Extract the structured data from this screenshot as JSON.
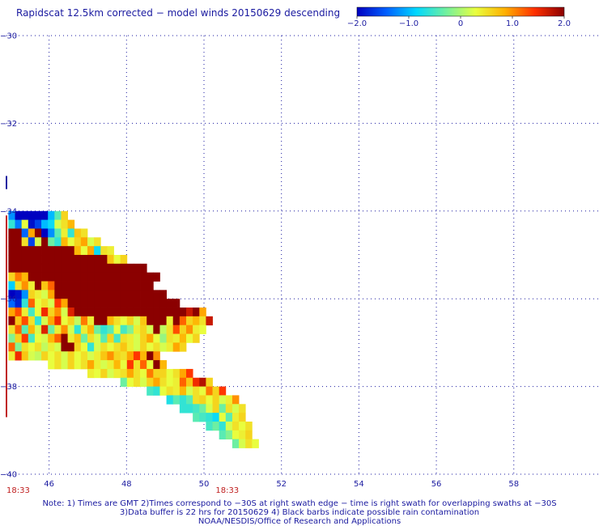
{
  "title": "Rapidscat 12.5km corrected − model winds 20150629 descending",
  "chart_data": {
    "type": "heatmap",
    "title": "Rapidscat 12.5km corrected − model winds 20150629 descending",
    "xlabel": "",
    "ylabel": "",
    "xlim": [
      44.9,
      60.2
    ],
    "ylim": [
      -40,
      -30
    ],
    "x_ticks": [
      46,
      48,
      50,
      52,
      54,
      56,
      58
    ],
    "y_ticks": [
      -30,
      -32,
      -34,
      -36,
      -38,
      -40
    ],
    "y_tick_labels": [
      "−30",
      "−32",
      "−34",
      "−36",
      "−38",
      "−40"
    ],
    "grid": true,
    "colorbar": {
      "min": -2.0,
      "max": 2.0,
      "ticks": [
        -2.0,
        -1.0,
        0,
        1.0,
        2.0
      ],
      "tick_labels": [
        "−2.0",
        "−1.0",
        "0",
        "1.0",
        "2.0"
      ],
      "colors": [
        "#0000c0",
        "#0060ff",
        "#00d8ff",
        "#70f0a0",
        "#e8ff40",
        "#ffb000",
        "#ff3000",
        "#8b0000"
      ]
    },
    "time_labels": [
      {
        "lon": 44.9,
        "lat": -40.35,
        "text": "18:33"
      },
      {
        "lon": 50.3,
        "lat": -40.35,
        "text": "18:33"
      }
    ],
    "cell_size_deg": [
      0.17,
      0.2
    ],
    "swath_rows": [
      {
        "lat": -34.1,
        "lon0": 44.95,
        "vals": [
          -1.2,
          -2.2,
          -2.2,
          -2.2,
          -2.2,
          -2.1,
          -1.0,
          -0.4,
          0.6
        ]
      },
      {
        "lat": -34.3,
        "lon0": 44.95,
        "vals": [
          -0.6,
          -1.3,
          0.3,
          -1.9,
          -1.6,
          -1.0,
          -0.8,
          0.2,
          0.5,
          0.8
        ]
      },
      {
        "lat": -34.5,
        "lon0": 44.95,
        "vals": [
          2.5,
          2.5,
          -1.4,
          0.9,
          2.5,
          -2.2,
          -1.2,
          -0.4,
          0.4,
          -0.6,
          0.7,
          0.5
        ]
      },
      {
        "lat": -34.7,
        "lon0": 44.95,
        "vals": [
          2.5,
          2.5,
          0.5,
          -1.6,
          0.2,
          2.5,
          -0.3,
          -0.6,
          0.8,
          0.3,
          0.6,
          0.9,
          0.2,
          0.5
        ]
      },
      {
        "lat": -34.9,
        "lon0": 44.95,
        "vals": [
          2.5,
          2.5,
          2.5,
          2.5,
          2.5,
          2.5,
          2.5,
          2.5,
          2.5,
          2.5,
          0.8,
          0.3,
          0.9,
          -0.8,
          0.5,
          0.4
        ]
      },
      {
        "lat": -35.1,
        "lon0": 44.95,
        "vals": [
          2.5,
          2.5,
          2.5,
          2.5,
          2.5,
          2.5,
          2.5,
          2.5,
          2.5,
          2.5,
          2.5,
          2.5,
          2.5,
          2.5,
          2.5,
          0.7,
          0.3,
          0.6
        ]
      },
      {
        "lat": -35.3,
        "lon0": 44.95,
        "vals": [
          2.5,
          2.5,
          2.5,
          2.5,
          2.5,
          2.5,
          2.5,
          2.5,
          2.5,
          2.5,
          2.5,
          2.5,
          2.5,
          2.5,
          2.5,
          2.5,
          2.5,
          2.5,
          2.5,
          2.5,
          2.5
        ]
      },
      {
        "lat": -35.5,
        "lon0": 44.95,
        "vals": [
          0.6,
          1.1,
          0.8,
          2.5,
          2.5,
          2.5,
          2.5,
          2.5,
          2.5,
          2.5,
          2.5,
          2.5,
          2.5,
          2.5,
          2.5,
          2.5,
          2.5,
          2.5,
          2.5,
          2.5,
          2.5,
          2.5,
          2.5
        ]
      },
      {
        "lat": -35.7,
        "lon0": 44.95,
        "vals": [
          -0.9,
          0.5,
          1.0,
          0.4,
          2.5,
          0.7,
          1.2,
          2.5,
          2.5,
          2.5,
          2.5,
          2.5,
          2.5,
          2.5,
          2.5,
          2.5,
          2.5,
          2.5,
          2.5,
          2.5,
          2.5,
          2.5
        ]
      },
      {
        "lat": -35.9,
        "lon0": 44.95,
        "vals": [
          -2.2,
          -1.9,
          -1.2,
          0.6,
          0.4,
          0.2,
          0.9,
          2.5,
          2.5,
          2.5,
          2.5,
          2.5,
          2.5,
          2.5,
          2.5,
          2.5,
          2.5,
          2.5,
          2.5,
          2.5,
          2.5,
          2.5,
          2.5,
          2.5
        ]
      },
      {
        "lat": -36.1,
        "lon0": 44.95,
        "vals": [
          -1.4,
          -1.8,
          -0.6,
          1.2,
          0.3,
          0.5,
          0.2,
          1.4,
          0.9,
          2.5,
          2.5,
          2.5,
          2.5,
          2.5,
          2.5,
          2.5,
          2.5,
          2.5,
          2.5,
          2.5,
          2.5,
          2.5,
          2.5,
          2.5,
          2.5,
          2.5
        ]
      },
      {
        "lat": -36.3,
        "lon0": 44.95,
        "vals": [
          0.9,
          1.3,
          0.4,
          -0.5,
          0.3,
          1.5,
          0.6,
          1.0,
          0.2,
          1.6,
          2.5,
          2.5,
          2.5,
          2.5,
          2.5,
          2.5,
          2.5,
          2.5,
          2.5,
          2.5,
          2.5,
          2.5,
          2.5,
          2.5,
          2.5,
          2.5,
          2.5,
          1.7,
          2.5,
          0.9
        ]
      },
      {
        "lat": -36.5,
        "lon0": 44.95,
        "vals": [
          2.5,
          0.7,
          1.3,
          0.5,
          -0.6,
          0.2,
          0.9,
          1.5,
          0.3,
          0.6,
          0.1,
          1.1,
          0.4,
          2.5,
          2.5,
          0.8,
          0.5,
          0.3,
          0.6,
          0.2,
          0.7,
          2.5,
          2.5,
          2.5,
          0.4,
          2.5,
          1.2,
          0.6,
          0.8,
          0.5,
          1.7
        ]
      },
      {
        "lat": -36.7,
        "lon0": 44.95,
        "vals": [
          0.5,
          1.2,
          -0.4,
          0.8,
          0.2,
          1.6,
          -0.3,
          0.4,
          1.0,
          0.2,
          -0.6,
          0.4,
          0.8,
          -0.3,
          -0.6,
          -0.4,
          0.3,
          -0.5,
          -0.2,
          0.4,
          0.6,
          0.2,
          2.5,
          0.1,
          0.5,
          1.3,
          0.6,
          1.0,
          0.4,
          0.3
        ]
      },
      {
        "lat": -36.9,
        "lon0": 44.95,
        "vals": [
          -0.2,
          0.6,
          1.4,
          -0.5,
          0.3,
          0.2,
          0.8,
          1.2,
          2.5,
          0.4,
          0.7,
          -0.3,
          0.5,
          0.2,
          -0.4,
          0.6,
          -0.5,
          0.5,
          0.4,
          0.2,
          0.6,
          0.9,
          0.3,
          -0.1,
          0.5,
          0.4,
          0.8,
          0.3,
          0.6
        ]
      },
      {
        "lat": -37.1,
        "lon0": 44.95,
        "vals": [
          1.2,
          -0.2,
          0.5,
          0.3,
          0.5,
          0.1,
          0.4,
          0.2,
          2.5,
          2.5,
          0.6,
          0.3,
          -0.6,
          0.2,
          0.5,
          0.3,
          0.5,
          0.7,
          0.4,
          0.2,
          0.6,
          0.3,
          0.5,
          0.2,
          0.4,
          0.9,
          0.6
        ]
      },
      {
        "lat": -37.3,
        "lon0": 44.95,
        "vals": [
          0.4,
          1.5,
          0.7,
          0.2,
          0.1,
          0.6,
          0.3,
          0.5,
          0.2,
          0.6,
          0.3,
          0.5,
          0.2,
          0.4,
          0.7,
          1.0,
          0.6,
          0.5,
          0.9,
          1.4,
          0.8,
          2.5,
          1.0
        ]
      },
      {
        "lat": -37.5,
        "lon0": 45.97,
        "vals": [
          0.3,
          0.5,
          0.2,
          0.6,
          0.3,
          0.5,
          0.9,
          0.4,
          0.2,
          0.4,
          0.8,
          0.3,
          1.4,
          0.5,
          1.2,
          0.3,
          2.5,
          0.8
        ]
      },
      {
        "lat": -37.7,
        "lon0": 46.99,
        "vals": [
          0.4,
          0.3,
          0.6,
          0.2,
          0.4,
          0.5,
          0.9,
          0.5,
          0.3,
          1.1,
          0.6,
          0.6,
          0.3,
          0.5,
          0.9,
          1.4
        ]
      },
      {
        "lat": -37.9,
        "lon0": 47.84,
        "vals": [
          -0.3,
          0.3,
          0.5,
          0.2,
          0.6,
          0.9,
          0.5,
          0.3,
          0.4,
          1.2,
          0.7,
          1.5,
          1.8,
          0.6
        ]
      },
      {
        "lat": -38.1,
        "lon0": 48.52,
        "vals": [
          -0.5,
          -0.6,
          0.3,
          0.5,
          0.4,
          0.8,
          0.2,
          0.5,
          0.3,
          1.1,
          0.6,
          1.4
        ]
      },
      {
        "lat": -38.3,
        "lon0": 49.03,
        "vals": [
          -0.7,
          -0.4,
          -0.6,
          -0.4,
          0.5,
          0.6,
          0.3,
          0.6,
          0.2,
          0.4,
          1.0
        ]
      },
      {
        "lat": -38.5,
        "lon0": 49.37,
        "vals": [
          -0.6,
          -0.6,
          -0.5,
          -0.3,
          0.2,
          0.6,
          -0.3,
          0.5,
          0.2,
          0.5
        ]
      },
      {
        "lat": -38.7,
        "lon0": 49.71,
        "vals": [
          -0.4,
          -0.5,
          -0.6,
          -0.8,
          0.3,
          -0.4,
          0.4,
          0.6
        ]
      },
      {
        "lat": -38.9,
        "lon0": 50.05,
        "vals": [
          -0.5,
          -0.3,
          -0.6,
          0.2,
          0.5,
          0.3,
          0.5
        ]
      },
      {
        "lat": -39.1,
        "lon0": 50.39,
        "vals": [
          -0.4,
          -0.2,
          0.3,
          0.4,
          0.6
        ]
      },
      {
        "lat": -39.3,
        "lon0": 50.73,
        "vals": [
          -0.3,
          0.2,
          0.5,
          0.3
        ]
      }
    ]
  },
  "notes": {
    "line1": "Note: 1) Times are GMT 2)Times correspond to −30S at right swath edge − time is right swath for overlapping swaths at −30S",
    "line2": "3)Data buffer is 22 hrs for 20150629 4) Black barbs indicate possible rain contamination",
    "line3": "NOAA/NESDIS/Office of Research and Applications"
  }
}
